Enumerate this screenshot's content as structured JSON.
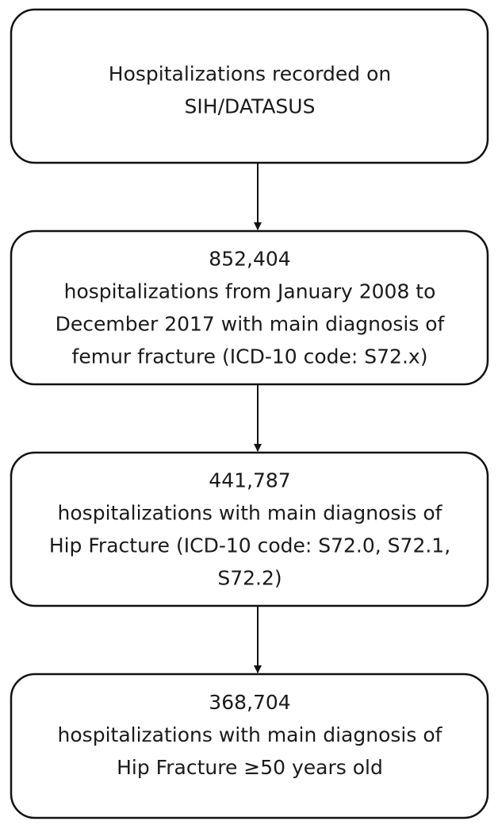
{
  "nodes": [
    {
      "lines": [
        "Hospitalizations recorded on",
        "SIH/DATASUS"
      ]
    },
    {
      "lines": [
        "852,404",
        "hospitalizations from January 2008 to",
        "December 2017 with main diagnosis of",
        "femur fracture (ICD-10 code: S72.x)"
      ]
    },
    {
      "lines": [
        "441,787",
        "hospitalizations with main diagnosis of",
        "Hip Fracture (ICD-10 code: S72.0, S72.1,",
        "S72.2)"
      ]
    },
    {
      "lines": [
        "368,704",
        "hospitalizations with main diagnosis of",
        "Hip Fracture ≥50 years old"
      ]
    }
  ]
}
